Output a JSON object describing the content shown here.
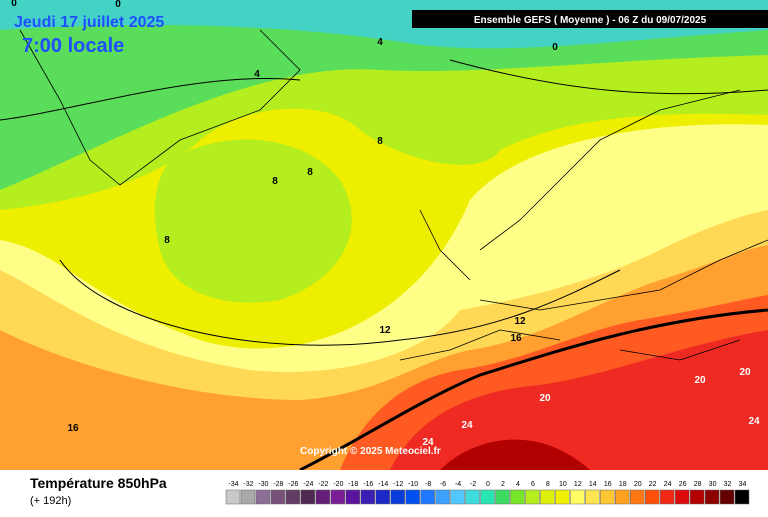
{
  "map": {
    "date": "Jeudi 17 juillet 2025",
    "time": "7:00 locale",
    "header": "Ensemble GEFS  ( Moyenne )  -  06 Z du 09/07/2025",
    "copyright": "Copyright © 2025 Meteociel.fr",
    "contour_labels": [
      0,
      0,
      4,
      0,
      4,
      8,
      8,
      8,
      8,
      12,
      12,
      16,
      20,
      20,
      20,
      24,
      24,
      24,
      16
    ],
    "legend": {
      "title": "Température 850hPa",
      "subtitle": "(+ 192h)",
      "scale": [
        -34,
        -32,
        -30,
        -28,
        -26,
        -24,
        -22,
        -20,
        -18,
        -16,
        -14,
        -12,
        -10,
        -8,
        -6,
        -4,
        -2,
        0,
        2,
        4,
        6,
        8,
        10,
        12,
        14,
        16,
        18,
        20,
        22,
        24,
        26,
        28,
        30,
        32,
        34
      ]
    }
  }
}
